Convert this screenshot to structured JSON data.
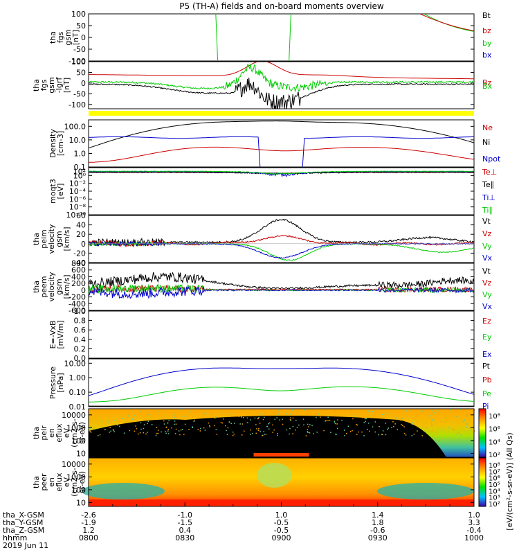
{
  "title": "P5 (TH-A) fields and on-board moments overview",
  "colors": {
    "black": "#000000",
    "red": "#cc0000",
    "green": "#00cc00",
    "blue": "#0000cc",
    "yellow": "#ffff00"
  },
  "chart_data": {
    "type": "line",
    "panels": [
      {
        "ylabel": [
          "tha",
          "fgs",
          "gsm",
          "[nT]"
        ],
        "ylim": [
          -100,
          100
        ],
        "yticks": [
          "100",
          "50",
          "0",
          "-50",
          "-100"
        ],
        "scale": "linear",
        "series": [
          {
            "name": "Bt",
            "color": "black"
          },
          {
            "name": "bz",
            "color": "red"
          },
          {
            "name": "by",
            "color": "green"
          },
          {
            "name": "bx",
            "color": "blue"
          }
        ]
      },
      {
        "ylabel": [
          "tha",
          "fgs",
          "gsm",
          "-Igrf",
          "[nT]"
        ],
        "ylim": [
          -120,
          100
        ],
        "yticks": [
          "100",
          "50",
          "0",
          "-50",
          "-100"
        ],
        "scale": "linear",
        "series": [
          {
            "name": "Bz",
            "color": "red"
          },
          {
            "name": "Bx",
            "color": "green"
          }
        ]
      },
      {
        "ylabel": [
          "Density",
          "[cm-3]"
        ],
        "ylim": [
          0.1,
          300
        ],
        "yticks": [
          "100.0",
          "10.0",
          "1.0",
          "0.1"
        ],
        "scale": "log",
        "series": [
          {
            "name": "Ne",
            "color": "red"
          },
          {
            "name": "Ni",
            "color": "black"
          },
          {
            "name": "Npot",
            "color": "blue"
          }
        ]
      },
      {
        "ylabel": [
          "moqt3",
          "[eV]"
        ],
        "ylim": [
          1e-10,
          100
        ],
        "yticks": [
          "10²",
          "10⁰",
          "10⁻²",
          "10⁻⁴",
          "10⁻⁶",
          "10⁻⁸",
          "10⁻¹⁰"
        ],
        "scale": "log",
        "series": [
          {
            "name": "Te⊥",
            "color": "red"
          },
          {
            "name": "Te∥",
            "color": "black"
          },
          {
            "name": "Ti⊥",
            "color": "blue"
          },
          {
            "name": "Ti∥",
            "color": "green"
          }
        ]
      },
      {
        "ylabel": [
          "tha",
          "peim",
          "velocity",
          "gsm",
          "[km/s]"
        ],
        "ylim": [
          -40,
          60
        ],
        "yticks": [
          "60",
          "40",
          "20",
          "0",
          "-20",
          "-40"
        ],
        "scale": "linear",
        "series": [
          {
            "name": "Vt",
            "color": "black"
          },
          {
            "name": "Vz",
            "color": "red"
          },
          {
            "name": "Vy",
            "color": "green"
          },
          {
            "name": "Vx",
            "color": "blue"
          }
        ]
      },
      {
        "ylabel": [
          "tha",
          "peem",
          "velocity",
          "gsm",
          "[km/s]"
        ],
        "ylim": [
          -600,
          800
        ],
        "yticks": [
          "800",
          "600",
          "400",
          "200",
          "0",
          "-200",
          "-400",
          "-600"
        ],
        "scale": "linear",
        "series": [
          {
            "name": "Vt",
            "color": "black"
          },
          {
            "name": "Vz",
            "color": "red"
          },
          {
            "name": "Vy",
            "color": "green"
          },
          {
            "name": "Vx",
            "color": "blue"
          }
        ]
      },
      {
        "ylabel": [
          "E=-VxB",
          "[mV/m]"
        ],
        "ylim": [
          0,
          1
        ],
        "yticks": [
          "1.0",
          "0.8",
          "0.6",
          "0.4",
          "0.2",
          "0.0"
        ],
        "scale": "linear",
        "series": [
          {
            "name": "Ez",
            "color": "red"
          },
          {
            "name": "Ey",
            "color": "green"
          },
          {
            "name": "Ex",
            "color": "blue"
          }
        ]
      },
      {
        "ylabel": [
          "Pressure",
          "[nPa]"
        ],
        "ylim": [
          0.01,
          20
        ],
        "yticks": [
          "10.00",
          "1.00",
          "0.10",
          "0.01"
        ],
        "scale": "log",
        "series": [
          {
            "name": "Pt",
            "color": "black"
          },
          {
            "name": "Pb",
            "color": "red"
          },
          {
            "name": "Pe",
            "color": "green"
          },
          {
            "name": "Pi",
            "color": "blue"
          }
        ]
      },
      {
        "ylabel": [
          "tha",
          "peir",
          "en",
          "eflux",
          "eV",
          "(cm2-s-",
          "sr-eV)"
        ],
        "ylim": [
          5,
          30000
        ],
        "yticks": [
          "10000",
          "1000",
          "100",
          "10"
        ],
        "scale": "log",
        "type": "heatmap"
      },
      {
        "ylabel": [
          "tha",
          "peer",
          "en",
          "eflux",
          "eV",
          "(cm2-s-",
          "sr-eV)"
        ],
        "ylim": [
          5,
          30000
        ],
        "yticks": [
          "10000",
          "1000",
          "100",
          "10"
        ],
        "scale": "log",
        "type": "heatmap"
      }
    ],
    "colorbars": [
      {
        "ticks": [
          "10⁸",
          "10⁶",
          "10⁴",
          "10²"
        ]
      },
      {
        "ticks": [
          "10⁸",
          "10⁷",
          "10⁶",
          "10⁵",
          "10⁴",
          "10³",
          "10²"
        ]
      }
    ],
    "colorbar_label": "[eV/(cm²-s-sr-eV)] (All Qs)",
    "x_axis": {
      "rows": [
        {
          "label": "tha_X-GSM",
          "values": [
            "-2.6",
            "-1.0",
            "1.0",
            "1.4",
            "1.0"
          ]
        },
        {
          "label": "tha_Y-GSM",
          "values": [
            "-1.9",
            "-1.5",
            "-0.5",
            "1.8",
            "3.3"
          ]
        },
        {
          "label": "tha_Z-GSM",
          "values": [
            "1.2",
            "0.4",
            "-0.5",
            "-0.6",
            "-0.4"
          ]
        },
        {
          "label": "hhmm",
          "values": [
            "0800",
            "0830",
            "0900",
            "0930",
            "1000"
          ]
        }
      ],
      "date": "2019 Jun 11"
    }
  }
}
